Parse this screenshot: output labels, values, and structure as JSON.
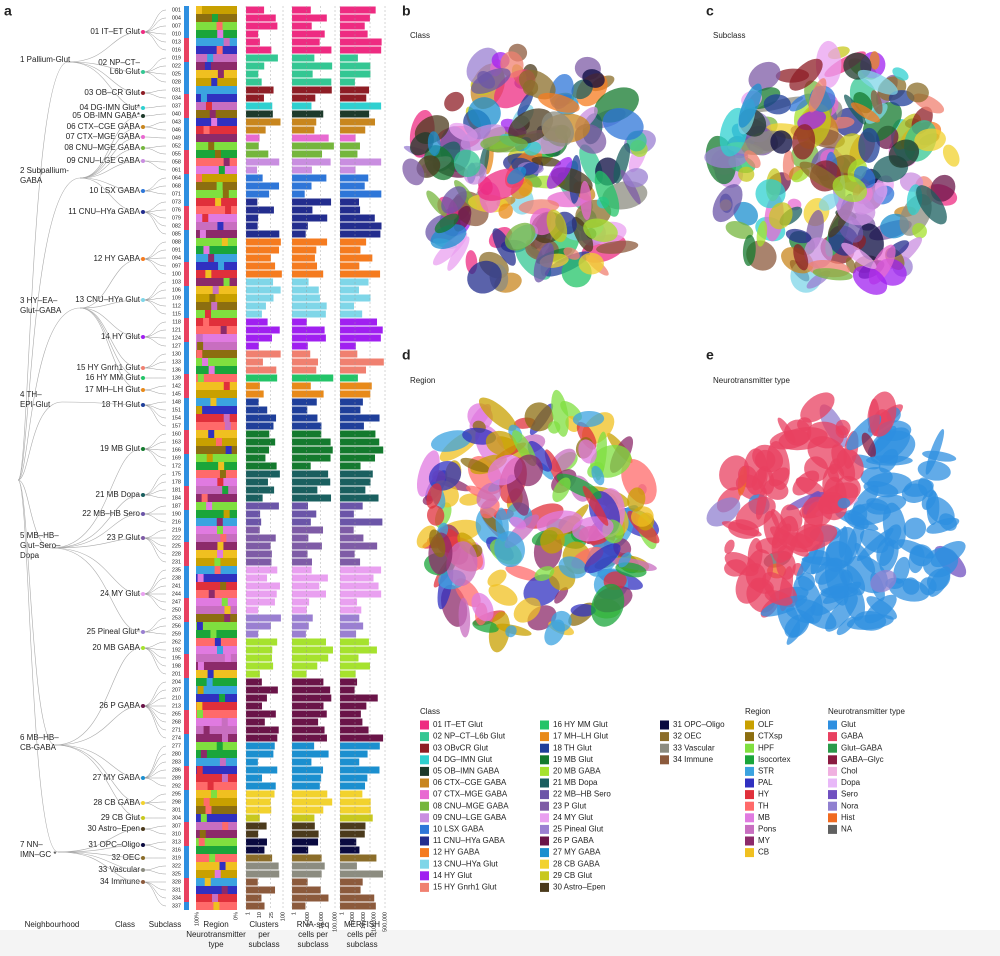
{
  "panel_labels": [
    "a",
    "b",
    "c",
    "d",
    "e"
  ],
  "umap_titles": [
    "Class",
    "Subclass",
    "Region",
    "Neurotransmitter type"
  ],
  "neighbourhoods": [
    [
      "1 Pallium-Glut"
    ],
    [
      "2 Subpallium-",
      "GABA"
    ],
    [
      "3 HY–EA–",
      "Glut–GABA"
    ],
    [
      "4 TH–",
      "EPI-Glut"
    ],
    [
      "5 MB–HB–",
      "Glut–Sero–",
      "Dopa"
    ],
    [
      "6 MB–HB–",
      "CB-GABA"
    ],
    [
      "7 NN–",
      "IMN–GC *"
    ]
  ],
  "tree_classes": [
    [
      "01 IT–ET Glut"
    ],
    [
      "02 NP–CT–",
      "L6b Glut"
    ],
    [
      "03 OB–CR Glut"
    ],
    [
      "04 DG-IMN Glut*"
    ],
    [
      "05 OB-IMN GABA*"
    ],
    [
      "06 CTX–CGE GABA"
    ],
    [
      "07 CTX–MGE GABA"
    ],
    [
      "08 CNU–MGE GABA"
    ],
    [
      "09 CNU–LGE GABA"
    ],
    [
      "10 LSX GABA"
    ],
    [
      "11 CNU–HYa GABA"
    ],
    [
      "12 HY GABA"
    ],
    [
      "13 CNU–HYa Glut"
    ],
    [
      "14 HY Glut"
    ],
    [
      "15 HY Gnrh1 Glut"
    ],
    [
      "16 HY MM Glut"
    ],
    [
      "17 MH–LH Glut"
    ],
    [
      "18 TH Glut"
    ],
    [
      "19 MB Glut"
    ],
    [
      "21 MB Dopa"
    ],
    [
      "22 MB–HB Sero"
    ],
    [
      "23 P Glut"
    ],
    [
      "24 MY Glut"
    ],
    [
      "25 Pineal Glut*"
    ],
    [
      "20 MB GABA"
    ],
    [
      "26 P GABA"
    ],
    [
      "27 MY GABA"
    ],
    [
      "28 CB GABA"
    ],
    [
      "29 CB Glut"
    ],
    [
      "30 Astro–Epen"
    ],
    [
      "31 OPC–Oligo"
    ],
    [
      "32 OEC"
    ],
    [
      "33 Vascular"
    ],
    [
      "34 Immune"
    ]
  ],
  "subclasses": [
    "001",
    "004",
    "007",
    "010",
    "013",
    "016",
    "019",
    "022",
    "025",
    "028",
    "031",
    "034",
    "037",
    "040",
    "043",
    "046",
    "049",
    "052",
    "055",
    "058",
    "061",
    "064",
    "068",
    "071",
    "073",
    "076",
    "079",
    "082",
    "085",
    "088",
    "091",
    "094",
    "097",
    "100",
    "103",
    "106",
    "109",
    "112",
    "115",
    "118",
    "121",
    "124",
    "127",
    "130",
    "133",
    "136",
    "139",
    "142",
    "145",
    "148",
    "151",
    "154",
    "157",
    "160",
    "163",
    "166",
    "169",
    "172",
    "175",
    "178",
    "181",
    "184",
    "187",
    "190",
    "216",
    "219",
    "222",
    "225",
    "228",
    "231",
    "235",
    "238",
    "241",
    "244",
    "247",
    "250",
    "253",
    "256",
    "259",
    "262",
    "192",
    "195",
    "198",
    "201",
    "204",
    "207",
    "210",
    "213",
    "265",
    "268",
    "271",
    "274",
    "277",
    "280",
    "283",
    "286",
    "289",
    "292",
    "295",
    "298",
    "301",
    "304",
    "307",
    "310",
    "313",
    "316",
    "319",
    "322",
    "325",
    "328",
    "331",
    "334",
    "337"
  ],
  "column_headers": [
    [
      "Neighbourhood"
    ],
    [
      "Class"
    ],
    [
      "Subclass"
    ],
    [
      "Region",
      "Neurotransmitter",
      "type"
    ],
    [
      "Clusters",
      "per",
      "subclass"
    ],
    [
      "RNA-seq",
      "cells per",
      "subclass"
    ],
    [
      "MERFISH",
      "cells per",
      "subclass"
    ]
  ],
  "region_ticks": [
    "100%",
    "0%"
  ],
  "clusters_ticks": [
    "1",
    "10",
    "25",
    "100"
  ],
  "rnaseq_ticks": [
    "1",
    "1,000",
    "10,000",
    "100,000"
  ],
  "merfish_ticks": [
    "1",
    "1,000",
    "10,000",
    "100,000",
    "500,000"
  ],
  "legend": {
    "class": {
      "title": "Class",
      "items": [
        {
          "name": "01 IT–ET Glut",
          "color": "#ee2b81"
        },
        {
          "name": "02 NP–CT–L6b Glut",
          "color": "#34c793"
        },
        {
          "name": "03 OBvCR Glut",
          "color": "#8e1d25"
        },
        {
          "name": "04 DG–IMN Glut",
          "color": "#2fd0d0"
        },
        {
          "name": "05 OB–IMN GABA",
          "color": "#1d3a2b"
        },
        {
          "name": "06 CTX–CGE GABA",
          "color": "#c8861e"
        },
        {
          "name": "07 CTX–MGE GABA",
          "color": "#e86ad1"
        },
        {
          "name": "08 CNU–MGE GABA",
          "color": "#75b63d"
        },
        {
          "name": "09 CNU–LGE GABA",
          "color": "#c98ee0"
        },
        {
          "name": "10 LSX GABA",
          "color": "#2e76d8"
        },
        {
          "name": "11 CNU–HYa GABA",
          "color": "#232d8e"
        },
        {
          "name": "12 HY GABA",
          "color": "#f57b1f"
        },
        {
          "name": "13 CNU–HYa Glut",
          "color": "#7fd6e8"
        },
        {
          "name": "14 HY Glut",
          "color": "#a020f0"
        },
        {
          "name": "15 HY Gnrh1 Glut",
          "color": "#f08070"
        },
        {
          "name": "16 HY MM Glut",
          "color": "#23c468"
        },
        {
          "name": "17 MH–LH Glut",
          "color": "#e88a1a"
        },
        {
          "name": "18 TH Glut",
          "color": "#1f3f9a"
        },
        {
          "name": "19 MB Glut",
          "color": "#147a2e"
        },
        {
          "name": "20 MB GABA",
          "color": "#a6e22e"
        },
        {
          "name": "21 MB Dopa",
          "color": "#1a5f5f"
        },
        {
          "name": "22 MB–HB Sero",
          "color": "#6b55a8"
        },
        {
          "name": "23 P Glut",
          "color": "#7e5ba6"
        },
        {
          "name": "24 MY Glut",
          "color": "#e9a0f0"
        },
        {
          "name": "25 Pineal Glut",
          "color": "#9a7fd1"
        },
        {
          "name": "26 P GABA",
          "color": "#6a1448"
        },
        {
          "name": "27 MY GABA",
          "color": "#1b8fcf"
        },
        {
          "name": "28 CB GABA",
          "color": "#f2d22e"
        },
        {
          "name": "29 CB Glut",
          "color": "#c8c81e"
        },
        {
          "name": "30 Astro–Epen",
          "color": "#4b3a1c"
        },
        {
          "name": "31 OPC–Oligo",
          "color": "#0a0a40"
        },
        {
          "name": "32 OEC",
          "color": "#8b6d2a"
        },
        {
          "name": "33 Vascular",
          "color": "#8c8c80"
        },
        {
          "name": "34 Immune",
          "color": "#8c5a3c"
        }
      ]
    },
    "region": {
      "title": "Region",
      "items": [
        {
          "name": "OLF",
          "color": "#c8a000"
        },
        {
          "name": "CTXsp",
          "color": "#8c6e10"
        },
        {
          "name": "HPF",
          "color": "#7fdf3f"
        },
        {
          "name": "Isocortex",
          "color": "#1aa53a"
        },
        {
          "name": "STR",
          "color": "#3ba3e0"
        },
        {
          "name": "PAL",
          "color": "#3030c0"
        },
        {
          "name": "HY",
          "color": "#e0303b"
        },
        {
          "name": "TH",
          "color": "#ff6a6a"
        },
        {
          "name": "MB",
          "color": "#e07ae0"
        },
        {
          "name": "Pons",
          "color": "#c86ec0"
        },
        {
          "name": "MY",
          "color": "#8c2a6a"
        },
        {
          "name": "CB",
          "color": "#f0c020"
        }
      ]
    },
    "nt": {
      "title": "Neurotransmitter type",
      "items": [
        {
          "name": "Glut",
          "color": "#2e8fe0"
        },
        {
          "name": "GABA",
          "color": "#e84060"
        },
        {
          "name": "Glut–GABA",
          "color": "#2a9a4a"
        },
        {
          "name": "GABA–Glyc",
          "color": "#8a1a40"
        },
        {
          "name": "Chol",
          "color": "#f0b0e0"
        },
        {
          "name": "Dopa",
          "color": "#e8b8f8"
        },
        {
          "name": "Sero",
          "color": "#7050c0"
        },
        {
          "name": "Nora",
          "color": "#9080d0"
        },
        {
          "name": "Hist",
          "color": "#f06a20"
        },
        {
          "name": "NA",
          "color": "#606060"
        }
      ]
    }
  }
}
